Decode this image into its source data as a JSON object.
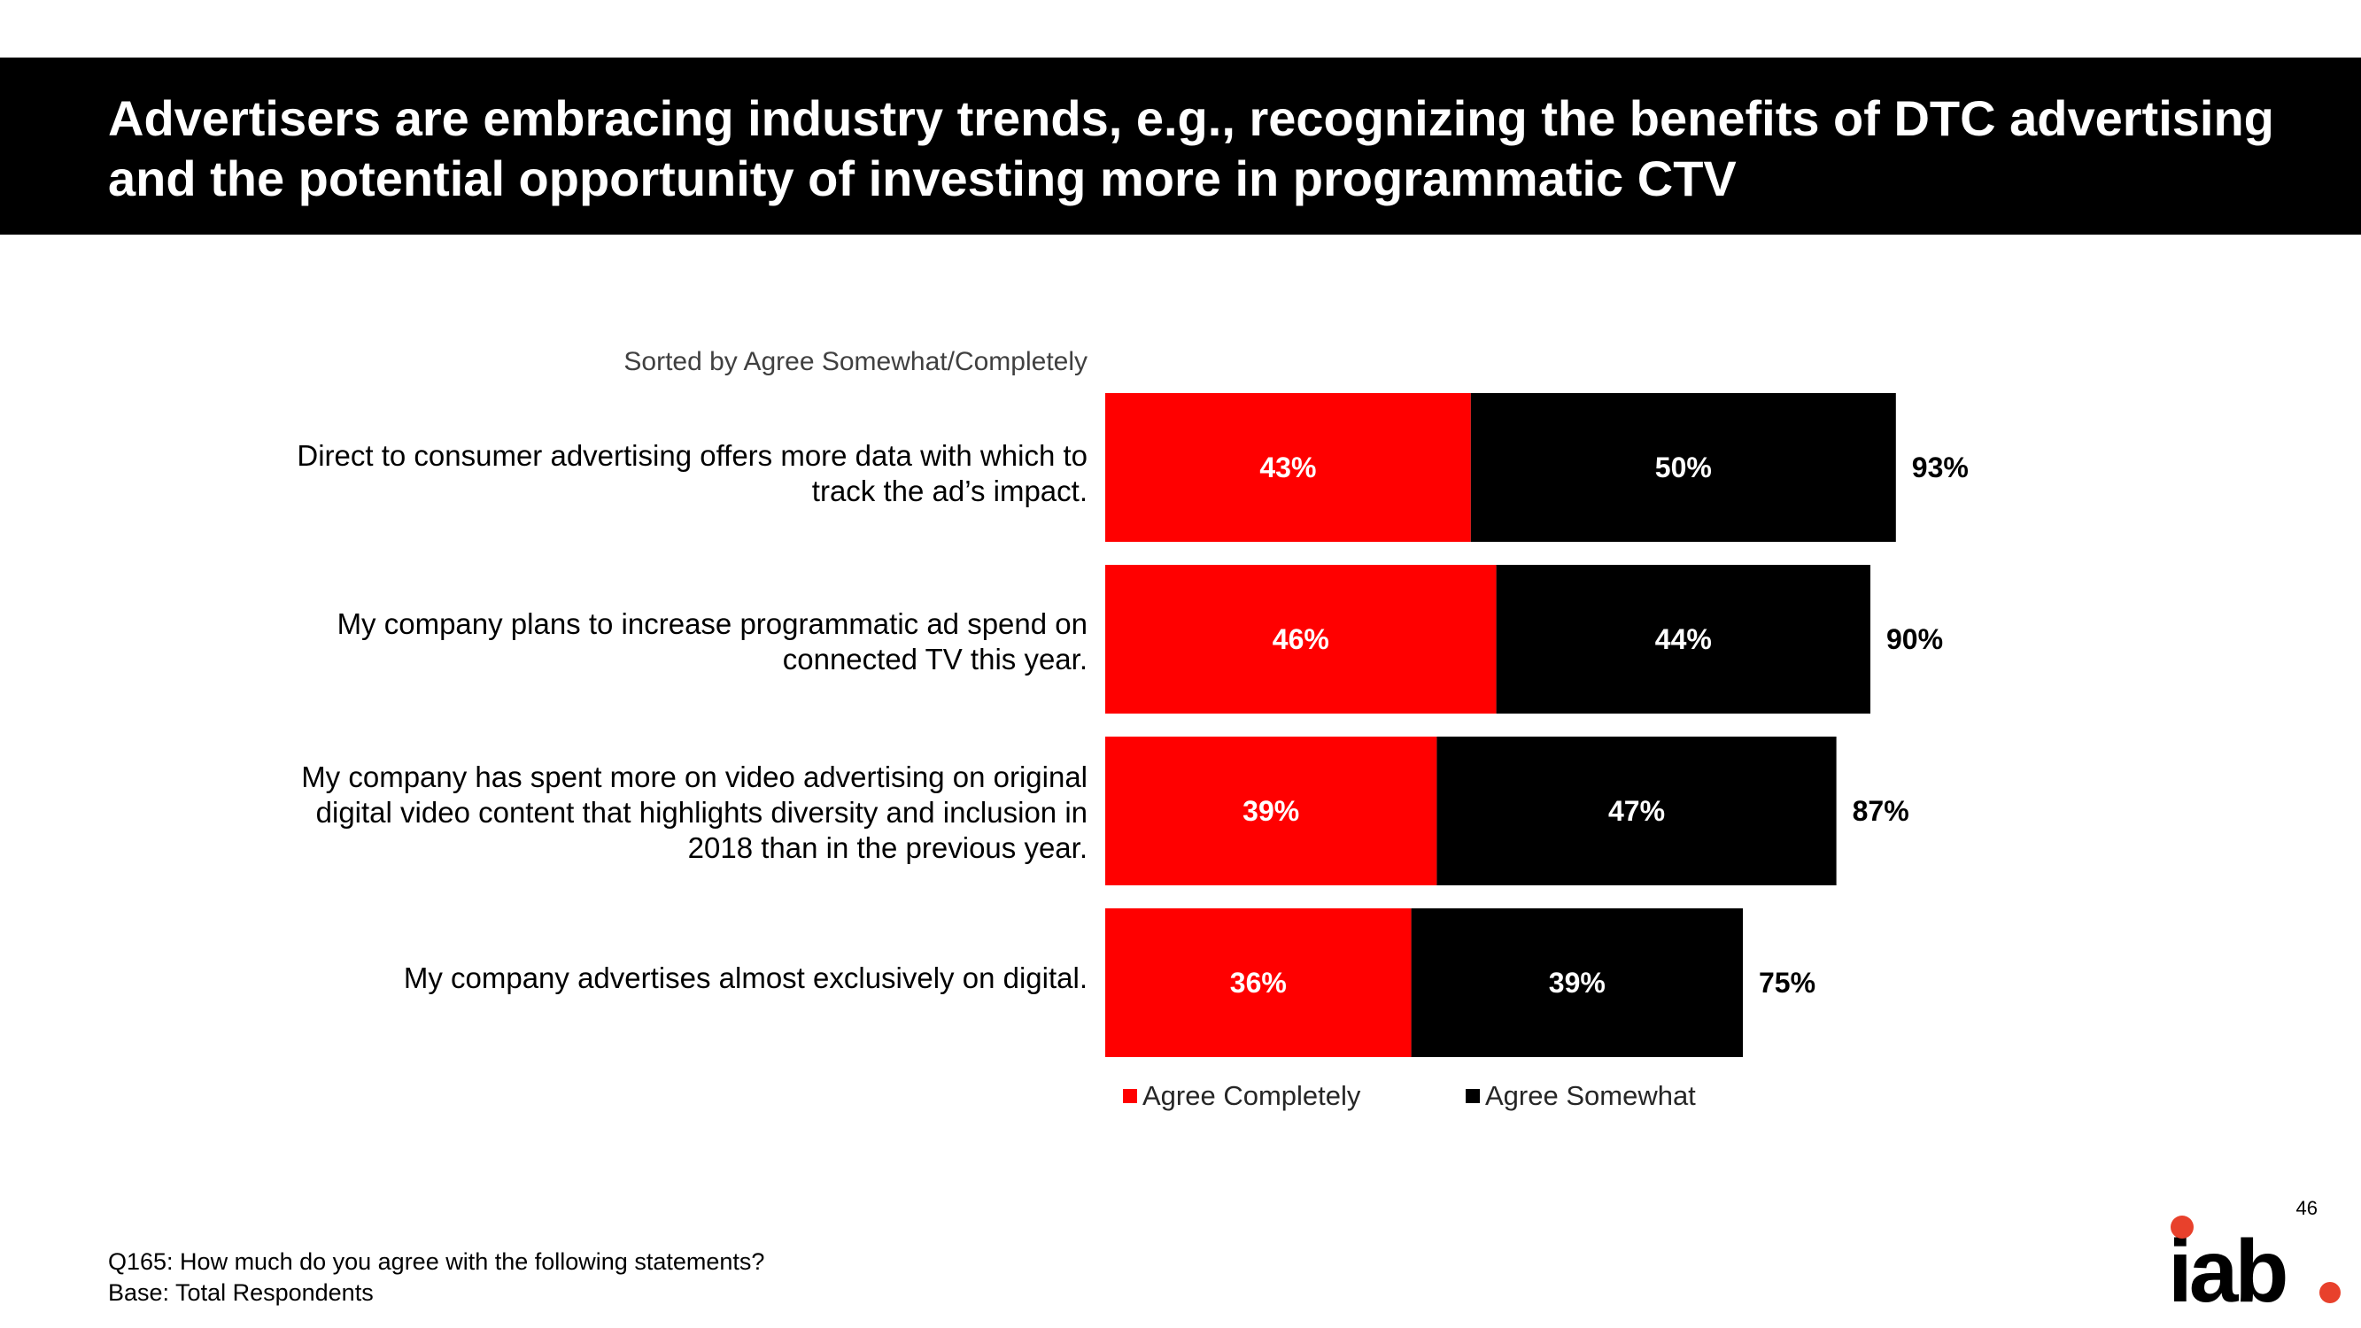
{
  "slide": {
    "title": "Advertisers are embracing industry trends, e.g., recognizing the benefits of DTC advertising and the potential opportunity of investing more in programmatic CTV",
    "sort_note": "Sorted by Agree Somewhat/Completely",
    "footnote_question": "Q165: How much do you agree with the following statements?",
    "footnote_base": "Base: Total Respondents",
    "page_number": "46",
    "logo_text": "iab."
  },
  "colors": {
    "header_bg": "#000000",
    "agree_completely": "#ff0000",
    "agree_somewhat": "#000000",
    "logo_dot": "#e8412c"
  },
  "chart_data": {
    "type": "bar",
    "orientation": "horizontal",
    "stacked": true,
    "categories": [
      "Direct to consumer advertising offers more data with which to track the ad’s impact.",
      "My company plans to increase programmatic ad spend on connected TV this year.",
      "My company has spent more on video advertising on original digital video content that highlights diversity and inclusion in 2018 than in the previous year.",
      "My company advertises almost exclusively on digital."
    ],
    "series": [
      {
        "name": "Agree Completely",
        "values": [
          43,
          46,
          39,
          36
        ],
        "labels": [
          "43%",
          "46%",
          "39%",
          "36%"
        ]
      },
      {
        "name": "Agree Somewhat",
        "values": [
          50,
          44,
          47,
          39
        ],
        "labels": [
          "50%",
          "44%",
          "47%",
          "39%"
        ]
      }
    ],
    "totals": [
      93,
      90,
      87,
      75
    ],
    "total_labels": [
      "93%",
      "90%",
      "87%",
      "75%"
    ],
    "xlim": [
      0,
      100
    ],
    "legend_position": "bottom",
    "grid": false
  }
}
